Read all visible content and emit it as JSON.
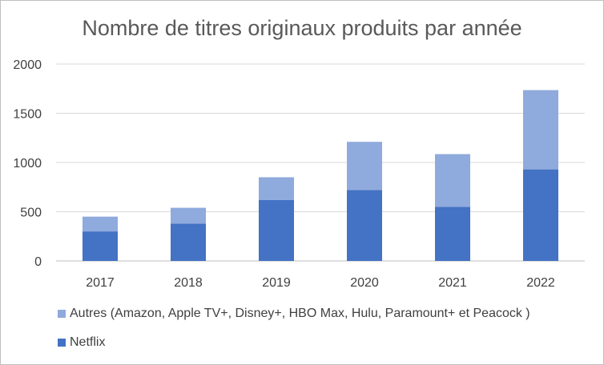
{
  "chart_data": {
    "type": "bar",
    "stacked": true,
    "title": "Nombre de titres originaux produits par année",
    "categories": [
      "2017",
      "2018",
      "2019",
      "2020",
      "2021",
      "2022"
    ],
    "series": [
      {
        "name": "Netflix",
        "values": [
          300,
          380,
          620,
          720,
          550,
          930
        ],
        "color": "#4472C4"
      },
      {
        "name": "Autres (Amazon, Apple TV+, Disney+, HBO Max, Hulu, Paramount+ et Peacock )",
        "values": [
          150,
          160,
          230,
          490,
          535,
          805
        ],
        "color": "#8FAADC"
      }
    ],
    "y_ticks": [
      "0",
      "500",
      "1000",
      "1500",
      "2000"
    ],
    "ylim": [
      0,
      2000
    ],
    "grid": true,
    "legend_position": "bottom"
  }
}
